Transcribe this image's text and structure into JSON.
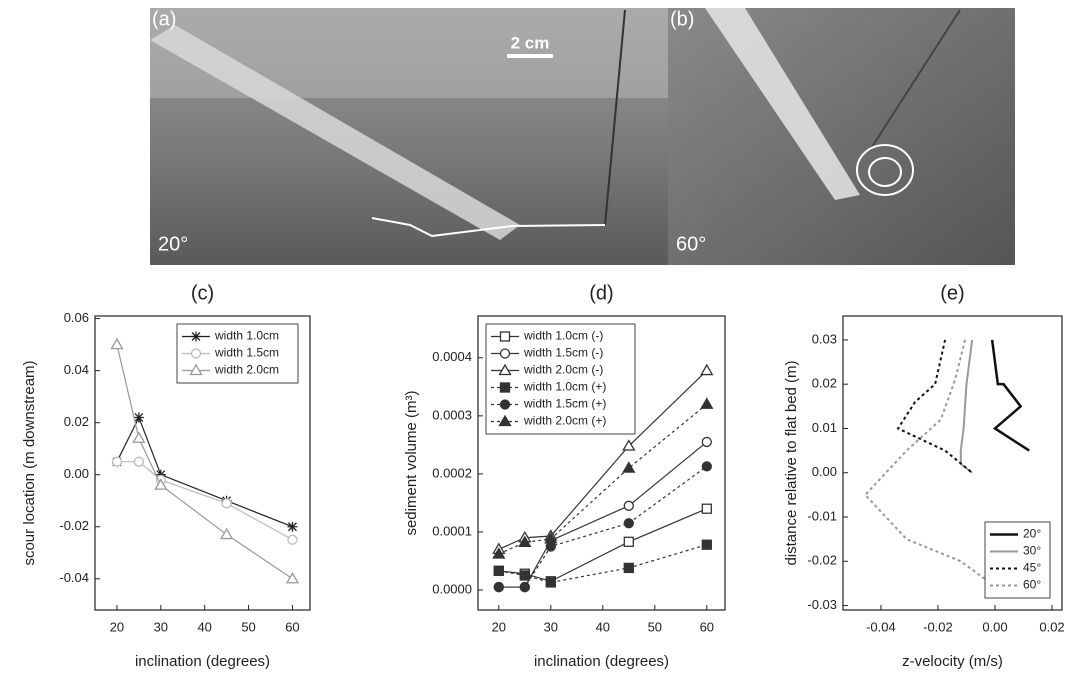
{
  "photos": [
    {
      "label": "(a)",
      "angle": "20°",
      "scale": "2 cm"
    },
    {
      "label": "(b)",
      "angle": "60°"
    }
  ],
  "chart_data": [
    {
      "type": "line",
      "title": "(c)",
      "x_label": "inclination (degrees)",
      "y_label": "scour location (m downstream)",
      "x": [
        20,
        25,
        30,
        45,
        60
      ],
      "xlim": [
        15,
        64
      ],
      "xticks": [
        20,
        30,
        40,
        50,
        60
      ],
      "ylim": [
        -0.052,
        0.061
      ],
      "yticks": [
        -0.04,
        -0.02,
        {
          "value": 0,
          "label": "0.00"
        },
        0.02,
        0.04,
        0.06
      ],
      "legend": "top right",
      "series": [
        {
          "name": "width 1.0cm",
          "color": "#222222",
          "marker": "star",
          "filled": false,
          "values": [
            0.005,
            0.022,
            0.0,
            -0.01,
            -0.02
          ]
        },
        {
          "name": "width 1.5cm",
          "color": "#bbbbbb",
          "marker": "circle",
          "filled": false,
          "values": [
            0.005,
            0.005,
            -0.002,
            -0.011,
            -0.025
          ]
        },
        {
          "name": "width 2.0cm",
          "color": "#999999",
          "marker": "triangle",
          "filled": false,
          "values": [
            0.05,
            0.014,
            -0.004,
            -0.023,
            -0.04
          ]
        }
      ]
    },
    {
      "type": "line",
      "title": "(d)",
      "x_label": "inclination (degrees)",
      "y_label": "sediment volume (m³)",
      "x": [
        20,
        25,
        30,
        45,
        60
      ],
      "xlim": [
        16,
        63.5
      ],
      "xticks": [
        20,
        30,
        40,
        50,
        60
      ],
      "ylim": [
        -3.45e-05,
        0.000472
      ],
      "yticks": [
        {
          "value": 0,
          "label": "0.0000"
        },
        {
          "value": 0.0001,
          "label": "0.0001"
        },
        {
          "value": 0.0002,
          "label": "0.0002"
        },
        {
          "value": 0.0003,
          "label": "0.0003"
        },
        {
          "value": 0.0004,
          "label": "0.0004"
        }
      ],
      "legend": "top left",
      "series": [
        {
          "name": "width 1.0cm (-)",
          "color": "#333333",
          "marker": "square",
          "filled": false,
          "dash": "solid",
          "values": [
            3.3e-05,
            2.8e-05,
            1.5e-05,
            8.3e-05,
            0.00014
          ]
        },
        {
          "name": "width 1.5cm (-)",
          "color": "#333333",
          "marker": "circle",
          "filled": false,
          "dash": "solid",
          "values": [
            5e-06,
            5e-06,
            8.5e-05,
            0.000145,
            0.000255
          ]
        },
        {
          "name": "width 2.0cm (-)",
          "color": "#333333",
          "marker": "triangle",
          "filled": false,
          "dash": "solid",
          "values": [
            7e-05,
            9e-05,
            9.3e-05,
            0.000248,
            0.000378
          ]
        },
        {
          "name": "width 1.0cm (+)",
          "color": "#333333",
          "marker": "square",
          "filled": true,
          "dash": "dotted",
          "values": [
            3.3e-05,
            2.5e-05,
            1.3e-05,
            3.8e-05,
            7.8e-05
          ]
        },
        {
          "name": "width 1.5cm (+)",
          "color": "#333333",
          "marker": "circle",
          "filled": true,
          "dash": "dotted",
          "values": [
            5e-06,
            5e-06,
            7.5e-05,
            0.000115,
            0.000213
          ]
        },
        {
          "name": "width 2.0cm (+)",
          "color": "#333333",
          "marker": "triangle",
          "filled": true,
          "dash": "dotted",
          "values": [
            6.2e-05,
            8.2e-05,
            8.8e-05,
            0.00021,
            0.00032
          ]
        }
      ]
    },
    {
      "type": "line",
      "title": "(e)",
      "x_label": "z-velocity (m/s)",
      "y_label": "distance relative to flat bed (m)",
      "xlim": [
        -0.0533,
        0.0235
      ],
      "xticks": [
        -0.04,
        -0.02,
        {
          "value": 0,
          "label": "0.00"
        },
        0.02
      ],
      "ylim": [
        -0.031,
        0.0354
      ],
      "yticks": [
        -0.03,
        -0.02,
        -0.01,
        {
          "value": 0,
          "label": "0.00"
        },
        0.01,
        0.02,
        0.03
      ],
      "legend": "bottom right",
      "series": [
        {
          "name": "20°",
          "color": "#111111",
          "dash": "solid",
          "width": 2.5,
          "x": [
            -0.001,
            0.001,
            0.003,
            0.009,
            0.0,
            0.012
          ],
          "values": [
            0.03,
            0.02,
            0.02,
            0.015,
            0.01,
            0.005
          ]
        },
        {
          "name": "30°",
          "color": "#999999",
          "dash": "solid",
          "width": 2,
          "x": [
            -0.008,
            -0.01,
            -0.011,
            -0.012,
            -0.012,
            -0.008
          ],
          "values": [
            0.03,
            0.02,
            0.01,
            0.005,
            0.002,
            0.0
          ]
        },
        {
          "name": "45°",
          "color": "#111111",
          "dash": "dotted",
          "width": 2,
          "x": [
            -0.0175,
            -0.021,
            -0.028,
            -0.034,
            -0.0175,
            -0.008
          ],
          "values": [
            0.03,
            0.02,
            0.016,
            0.01,
            0.005,
            0.0
          ]
        },
        {
          "name": "60°",
          "color": "#999999",
          "dash": "dotted",
          "width": 2,
          "x": [
            -0.0105,
            -0.014,
            -0.019,
            -0.031,
            -0.0455,
            -0.031,
            -0.012,
            -0.0035
          ],
          "values": [
            0.03,
            0.021,
            0.012,
            0.005,
            -0.005,
            -0.015,
            -0.02,
            -0.024
          ]
        }
      ]
    }
  ]
}
